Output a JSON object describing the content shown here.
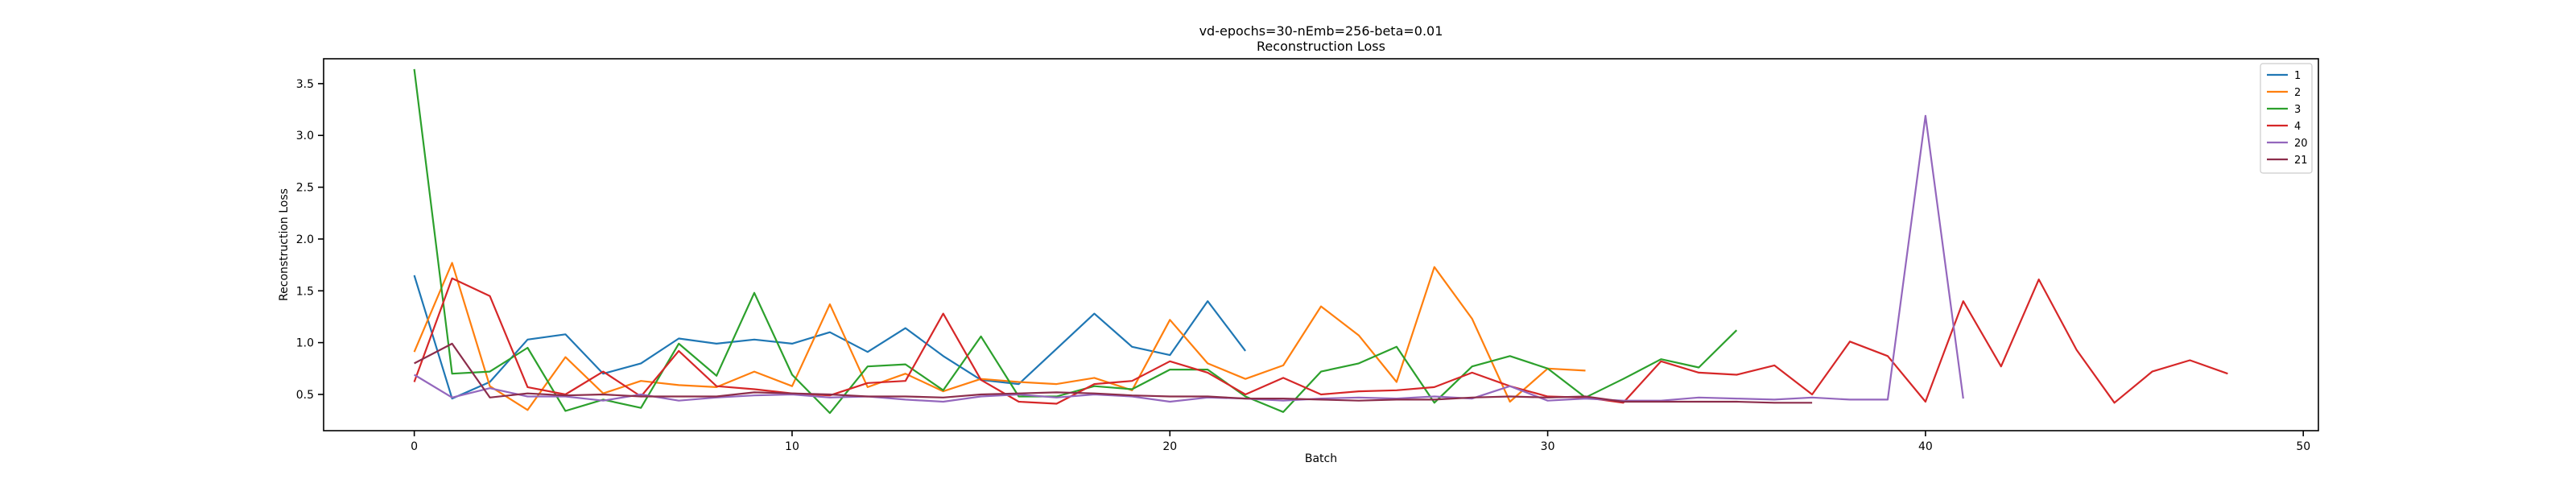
{
  "chart_data": {
    "type": "line",
    "title": "vd-epochs=30-nEmb=256-beta=0.01",
    "subtitle": "Reconstruction Loss",
    "xlabel": "Batch",
    "ylabel": "Reconstruction Loss",
    "xlim": [
      -2.4,
      50.4
    ],
    "ylim": [
      0.15,
      3.74
    ],
    "xticks": [
      0,
      10,
      20,
      30,
      40,
      50
    ],
    "yticks": [
      0.5,
      1.0,
      1.5,
      2.0,
      2.5,
      3.0,
      3.5
    ],
    "ytick_labels": [
      "0.5",
      "1.0",
      "1.5",
      "2.0",
      "2.5",
      "3.0",
      "3.5"
    ],
    "grid": false,
    "legend_position": "top-right",
    "series": [
      {
        "name": "1",
        "color": "#1f77b4",
        "x": [
          0,
          1,
          2,
          3,
          4,
          5,
          6,
          7,
          8,
          9,
          10,
          11,
          12,
          13,
          14,
          15,
          16,
          17,
          18,
          19,
          20,
          21,
          22
        ],
        "y": [
          1.65,
          0.46,
          0.62,
          1.03,
          1.08,
          0.7,
          0.8,
          1.04,
          0.99,
          1.03,
          0.99,
          1.1,
          0.91,
          1.14,
          0.87,
          0.64,
          0.6,
          0.94,
          1.28,
          0.96,
          0.88,
          1.4,
          0.92
        ]
      },
      {
        "name": "2",
        "color": "#ff7f0e",
        "x": [
          0,
          1,
          2,
          3,
          4,
          5,
          6,
          7,
          8,
          9,
          10,
          11,
          12,
          13,
          14,
          15,
          16,
          17,
          18,
          19,
          20,
          21,
          22,
          23,
          24,
          25,
          26,
          27,
          28,
          29,
          30,
          31
        ],
        "y": [
          0.91,
          1.77,
          0.58,
          0.35,
          0.86,
          0.51,
          0.63,
          0.59,
          0.57,
          0.72,
          0.58,
          1.37,
          0.57,
          0.7,
          0.53,
          0.65,
          0.62,
          0.6,
          0.66,
          0.54,
          1.22,
          0.8,
          0.65,
          0.78,
          1.35,
          1.07,
          0.62,
          1.73,
          1.23,
          0.43,
          0.75,
          0.73
        ]
      },
      {
        "name": "3",
        "color": "#2ca02c",
        "x": [
          0,
          1,
          2,
          3,
          4,
          5,
          6,
          7,
          8,
          9,
          10,
          11,
          12,
          13,
          14,
          15,
          16,
          17,
          18,
          19,
          20,
          21,
          22,
          23,
          24,
          25,
          26,
          27,
          28,
          29,
          30,
          31,
          32,
          33,
          34,
          35
        ],
        "y": [
          3.64,
          0.7,
          0.72,
          0.95,
          0.34,
          0.45,
          0.37,
          0.99,
          0.68,
          1.48,
          0.69,
          0.32,
          0.77,
          0.79,
          0.54,
          1.06,
          0.48,
          0.48,
          0.58,
          0.55,
          0.74,
          0.74,
          0.48,
          0.33,
          0.72,
          0.8,
          0.96,
          0.42,
          0.77,
          0.87,
          0.75,
          0.47,
          0.65,
          0.84,
          0.76,
          1.12
        ]
      },
      {
        "name": "4",
        "color": "#d62728",
        "x": [
          0,
          1,
          2,
          3,
          4,
          5,
          6,
          7,
          8,
          9,
          10,
          11,
          12,
          13,
          14,
          15,
          16,
          17,
          18,
          19,
          20,
          21,
          22,
          23,
          24,
          25,
          26,
          27,
          28,
          29,
          30,
          31,
          32,
          33,
          34,
          35,
          36,
          37,
          38,
          39,
          40,
          41,
          42,
          43,
          44,
          45,
          46,
          47,
          48
        ],
        "y": [
          0.62,
          1.62,
          1.45,
          0.57,
          0.5,
          0.72,
          0.48,
          0.92,
          0.58,
          0.55,
          0.51,
          0.49,
          0.61,
          0.63,
          1.28,
          0.64,
          0.43,
          0.41,
          0.6,
          0.63,
          0.82,
          0.71,
          0.5,
          0.66,
          0.5,
          0.53,
          0.54,
          0.57,
          0.71,
          0.58,
          0.48,
          0.47,
          0.42,
          0.82,
          0.71,
          0.69,
          0.78,
          0.5,
          1.01,
          0.87,
          0.43,
          1.4,
          0.77,
          1.61,
          0.93,
          0.42,
          0.72,
          0.83,
          0.7
        ]
      },
      {
        "name": "20",
        "color": "#9467bd",
        "x": [
          0,
          1,
          2,
          3,
          4,
          5,
          6,
          7,
          8,
          9,
          10,
          11,
          12,
          13,
          14,
          15,
          16,
          17,
          18,
          19,
          20,
          21,
          22,
          23,
          24,
          25,
          26,
          27,
          28,
          29,
          30,
          31,
          32,
          33,
          34,
          35,
          36,
          37,
          38,
          39,
          40,
          41
        ],
        "y": [
          0.69,
          0.47,
          0.56,
          0.48,
          0.48,
          0.44,
          0.5,
          0.44,
          0.47,
          0.49,
          0.5,
          0.47,
          0.48,
          0.45,
          0.43,
          0.48,
          0.5,
          0.47,
          0.5,
          0.48,
          0.43,
          0.47,
          0.46,
          0.44,
          0.46,
          0.47,
          0.46,
          0.48,
          0.46,
          0.58,
          0.44,
          0.46,
          0.44,
          0.44,
          0.47,
          0.46,
          0.45,
          0.47,
          0.45,
          0.45,
          3.19,
          0.46
        ]
      },
      {
        "name": "21",
        "color": "#8c2d4b",
        "x": [
          0,
          1,
          2,
          3,
          4,
          5,
          6,
          7,
          8,
          9,
          10,
          11,
          12,
          13,
          14,
          15,
          16,
          17,
          18,
          19,
          20,
          21,
          22,
          23,
          24,
          25,
          26,
          27,
          28,
          29,
          30,
          31,
          32,
          33,
          34,
          35,
          36,
          37
        ],
        "y": [
          0.8,
          0.99,
          0.47,
          0.51,
          0.49,
          0.5,
          0.48,
          0.48,
          0.48,
          0.52,
          0.51,
          0.5,
          0.48,
          0.48,
          0.47,
          0.5,
          0.51,
          0.52,
          0.51,
          0.49,
          0.48,
          0.48,
          0.46,
          0.46,
          0.45,
          0.44,
          0.45,
          0.45,
          0.47,
          0.48,
          0.47,
          0.48,
          0.43,
          0.43,
          0.43,
          0.43,
          0.42,
          0.42
        ]
      }
    ]
  }
}
